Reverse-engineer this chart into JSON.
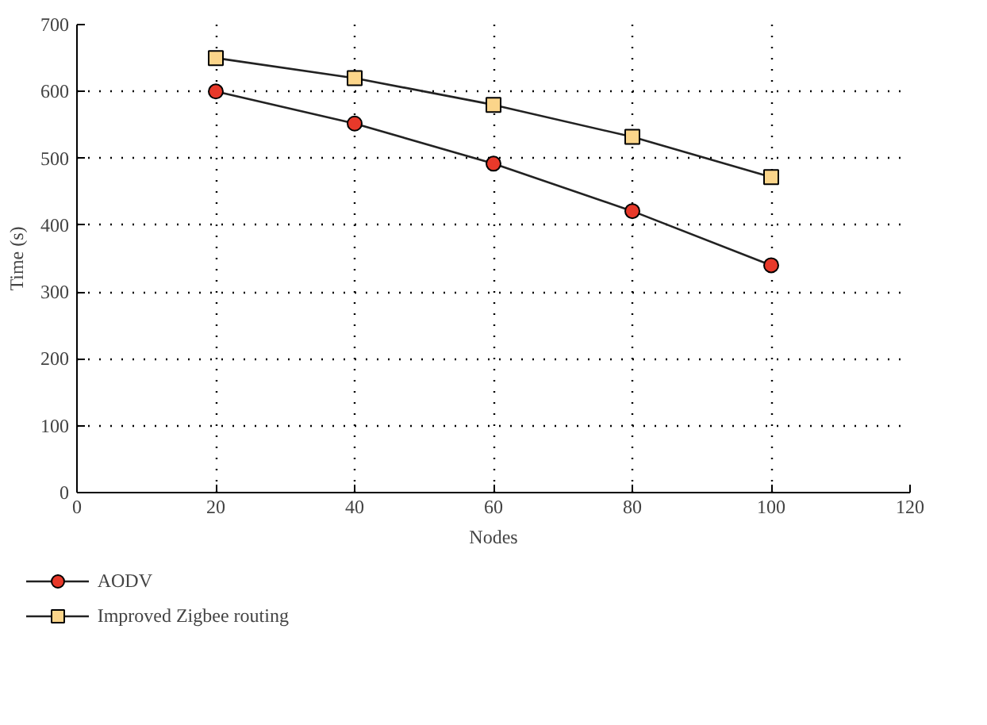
{
  "chart_data": {
    "type": "line",
    "xlabel": "Nodes",
    "ylabel": "Time (s)",
    "x": [
      20,
      40,
      60,
      80,
      100
    ],
    "series": [
      {
        "name": "AODV",
        "color": "#e8392a",
        "marker": "circle",
        "values": [
          600,
          552,
          492,
          421,
          340
        ]
      },
      {
        "name": "Improved Zigbee routing",
        "color": "#fbd58a",
        "marker": "square",
        "values": [
          650,
          620,
          580,
          532,
          472
        ]
      }
    ],
    "xlim": [
      0,
      120
    ],
    "xticks": [
      0,
      20,
      40,
      60,
      80,
      100,
      120
    ],
    "ylim": [
      0,
      700
    ],
    "yticks": [
      0,
      100,
      200,
      300,
      400,
      500,
      600,
      700
    ],
    "grid": true,
    "legend": "bottom left",
    "line_style": "solid"
  }
}
